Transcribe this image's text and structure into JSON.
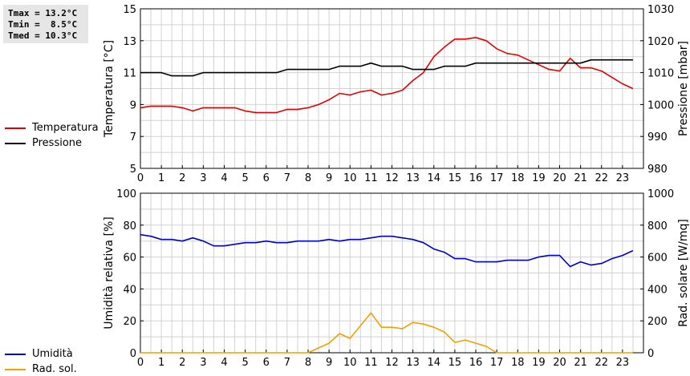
{
  "stats": {
    "tmax": "Tmax = 13.2°C",
    "tmin": "Tmin =  8.5°C",
    "tmed": "Tmed = 10.3°C"
  },
  "colors": {
    "temperature": "#e00000",
    "pressure": "#000000",
    "humidity": "#0000c8",
    "solar": "#f0a000",
    "grid": "#d2d2d2"
  },
  "chart_data": [
    {
      "type": "line",
      "x_ticks": [
        "0",
        "1",
        "2",
        "3",
        "4",
        "5",
        "6",
        "7",
        "8",
        "9",
        "10",
        "11",
        "12",
        "13",
        "14",
        "15",
        "16",
        "17",
        "18",
        "19",
        "20",
        "21",
        "22",
        "23"
      ],
      "xlim": [
        0,
        24
      ],
      "ylabel": "Temperatura [°C]",
      "ylim": [
        5,
        15
      ],
      "y_ticks": [
        "5",
        "7",
        "9",
        "11",
        "13",
        "15"
      ],
      "y2label": "Pressione [mbar]",
      "y2lim": [
        980,
        1030
      ],
      "y2_ticks": [
        "980",
        "990",
        "1000",
        "1010",
        "1020",
        "1030"
      ],
      "grid": true,
      "legend_position": "left",
      "series": [
        {
          "name": "Temperatura",
          "axis": "left",
          "x": [
            0,
            0.5,
            1,
            1.5,
            2,
            2.5,
            3,
            3.5,
            4,
            4.5,
            5,
            5.5,
            6,
            6.5,
            7,
            7.5,
            8,
            8.5,
            9,
            9.5,
            10,
            10.5,
            11,
            11.5,
            12,
            12.5,
            13,
            13.5,
            14,
            14.5,
            15,
            15.5,
            16,
            16.5,
            17,
            17.5,
            18,
            18.5,
            19,
            19.5,
            20,
            20.5,
            21,
            21.5,
            22,
            22.5,
            23,
            23.5
          ],
          "values": [
            8.8,
            8.9,
            8.9,
            8.9,
            8.8,
            8.6,
            8.8,
            8.8,
            8.8,
            8.8,
            8.6,
            8.5,
            8.5,
            8.5,
            8.7,
            8.7,
            8.8,
            9.0,
            9.3,
            9.7,
            9.6,
            9.8,
            9.9,
            9.6,
            9.7,
            9.9,
            10.5,
            11.0,
            12.0,
            12.6,
            13.1,
            13.1,
            13.2,
            13.0,
            12.5,
            12.2,
            12.1,
            11.8,
            11.5,
            11.2,
            11.1,
            11.9,
            11.3,
            11.3,
            11.1,
            10.7,
            10.3,
            10.0
          ]
        },
        {
          "name": "Pressione",
          "axis": "right",
          "x": [
            0,
            1,
            1.5,
            2,
            2.5,
            3,
            3.5,
            4,
            4.5,
            5,
            5.5,
            6,
            6.5,
            7,
            7.5,
            8,
            8.5,
            9,
            9.5,
            10,
            10.5,
            11,
            11.5,
            12,
            12.5,
            13,
            13.5,
            14,
            14.5,
            15,
            15.5,
            16,
            16.5,
            17,
            17.5,
            18,
            18.5,
            19,
            19.5,
            20,
            20.5,
            21,
            21.5,
            22,
            22.5,
            23,
            23.5
          ],
          "values": [
            1010,
            1010,
            1009,
            1009,
            1009,
            1010,
            1010,
            1010,
            1010,
            1010,
            1010,
            1010,
            1010,
            1011,
            1011,
            1011,
            1011,
            1011,
            1012,
            1012,
            1012,
            1013,
            1012,
            1012,
            1012,
            1011,
            1011,
            1011,
            1012,
            1012,
            1012,
            1013,
            1013,
            1013,
            1013,
            1013,
            1013,
            1013,
            1013,
            1013,
            1013,
            1013,
            1014,
            1014,
            1014,
            1014,
            1014
          ]
        }
      ]
    },
    {
      "type": "line",
      "x_ticks": [
        "0",
        "1",
        "2",
        "3",
        "4",
        "5",
        "6",
        "7",
        "8",
        "9",
        "10",
        "11",
        "12",
        "13",
        "14",
        "15",
        "16",
        "17",
        "18",
        "19",
        "20",
        "21",
        "22",
        "23"
      ],
      "xlim": [
        0,
        24
      ],
      "ylabel": "Umidità relativa [%]",
      "ylim": [
        0,
        100
      ],
      "y_ticks": [
        "0",
        "20",
        "40",
        "60",
        "80",
        "100"
      ],
      "y2label": "Rad. solare [W/mq]",
      "y2lim": [
        0,
        1000
      ],
      "y2_ticks": [
        "0",
        "200",
        "400",
        "600",
        "800",
        "1000"
      ],
      "grid": true,
      "legend_position": "left",
      "series": [
        {
          "name": "Umidità",
          "axis": "left",
          "x": [
            0,
            0.5,
            1,
            1.5,
            2,
            2.5,
            3,
            3.5,
            4,
            4.5,
            5,
            5.5,
            6,
            6.5,
            7,
            7.5,
            8,
            8.5,
            9,
            9.5,
            10,
            10.5,
            11,
            11.5,
            12,
            12.5,
            13,
            13.5,
            14,
            14.5,
            15,
            15.5,
            16,
            16.5,
            17,
            17.5,
            18,
            18.5,
            19,
            19.5,
            20,
            20.5,
            21,
            21.5,
            22,
            22.5,
            23,
            23.5
          ],
          "values": [
            74,
            73,
            71,
            71,
            70,
            72,
            70,
            67,
            67,
            68,
            69,
            69,
            70,
            69,
            69,
            70,
            70,
            70,
            71,
            70,
            71,
            71,
            72,
            73,
            73,
            72,
            71,
            69,
            65,
            63,
            59,
            59,
            57,
            57,
            57,
            58,
            58,
            58,
            60,
            61,
            61,
            54,
            57,
            55,
            56,
            59,
            61,
            64
          ]
        },
        {
          "name": "Rad. sol.",
          "axis": "right",
          "x": [
            0,
            0.5,
            1,
            1.5,
            2,
            2.5,
            3,
            3.5,
            4,
            4.5,
            5,
            5.5,
            6,
            6.5,
            7,
            7.5,
            8,
            8.5,
            9,
            9.5,
            10,
            10.5,
            11,
            11.5,
            12,
            12.5,
            13,
            13.5,
            14,
            14.5,
            15,
            15.5,
            16,
            16.5,
            17,
            17.5,
            18,
            18.5,
            19,
            19.5,
            20,
            20.5,
            21,
            21.5,
            22,
            22.5,
            23,
            23.5
          ],
          "values": [
            0,
            0,
            0,
            0,
            0,
            0,
            0,
            0,
            0,
            0,
            0,
            0,
            0,
            0,
            0,
            0,
            0,
            30,
            60,
            120,
            90,
            170,
            250,
            160,
            160,
            150,
            190,
            180,
            160,
            130,
            65,
            80,
            60,
            40,
            0,
            0,
            0,
            0,
            0,
            0,
            0,
            0,
            0,
            0,
            0,
            0,
            0,
            0
          ]
        }
      ]
    }
  ]
}
